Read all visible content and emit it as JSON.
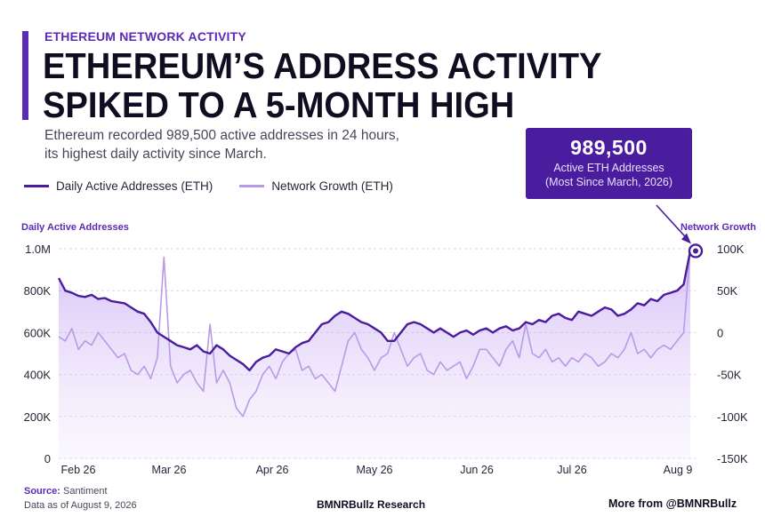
{
  "header": {
    "kicker": "ETHEREUM NETWORK ACTIVITY",
    "headline_line1": "ETHEREUM’S ADDRESS ACTIVITY",
    "headline_line2": "SPIKED TO A 5-MONTH HIGH",
    "subtitle_line1": "Ethereum recorded 989,500 active addresses in 24 hours,",
    "subtitle_line2": "its highest daily activity since March."
  },
  "callout": {
    "value": "989,500",
    "line1": "Active ETH Addresses",
    "line2": "(Most Since March, 2026)"
  },
  "footer": {
    "source_label": "Source:",
    "source_value": "Santiment",
    "data_as_of": "Data as of August 9, 2026",
    "center": "BMNRBullz Research",
    "right": "More from @BMNRBullz"
  },
  "colors": {
    "primary": "#4a1c9e",
    "secondary": "#b99ae6",
    "accent": "#5b2bb5"
  },
  "chart_data": {
    "type": "area",
    "left_axis_title": "Daily Active Addresses",
    "right_axis_title": "Network Growth",
    "left_ticks": [
      "1.0M",
      "800K",
      "600K",
      "400K",
      "200K",
      "0"
    ],
    "right_ticks": [
      "100K",
      "50K",
      "0",
      "-50K",
      "-100K",
      "-150K"
    ],
    "x_ticks": [
      "Feb 26",
      "Mar 26",
      "Apr 26",
      "May 26",
      "Jun 26",
      "Jul 26",
      "Aug 9"
    ],
    "ylim_left": [
      0,
      1000000
    ],
    "ylim_right": [
      -150000,
      100000
    ],
    "grid": true,
    "legend_position": "top-left",
    "series": [
      {
        "name": "Daily Active Addresses (ETH)",
        "axis": "left",
        "style": "line with light area fill",
        "color": "#4a1c9e",
        "values": [
          860000,
          800000,
          790000,
          775000,
          770000,
          780000,
          760000,
          765000,
          750000,
          745000,
          740000,
          720000,
          700000,
          690000,
          650000,
          600000,
          580000,
          560000,
          540000,
          530000,
          520000,
          540000,
          510000,
          500000,
          540000,
          520000,
          490000,
          470000,
          450000,
          420000,
          460000,
          480000,
          490000,
          520000,
          510000,
          500000,
          530000,
          550000,
          560000,
          600000,
          640000,
          650000,
          680000,
          700000,
          690000,
          670000,
          650000,
          640000,
          620000,
          600000,
          560000,
          560000,
          600000,
          640000,
          650000,
          640000,
          620000,
          600000,
          620000,
          600000,
          580000,
          600000,
          610000,
          590000,
          610000,
          620000,
          600000,
          620000,
          630000,
          610000,
          620000,
          650000,
          640000,
          660000,
          650000,
          680000,
          690000,
          670000,
          660000,
          700000,
          690000,
          680000,
          700000,
          720000,
          710000,
          680000,
          690000,
          710000,
          740000,
          730000,
          760000,
          750000,
          780000,
          790000,
          800000,
          830000,
          989500
        ]
      },
      {
        "name": "Network Growth (ETH)",
        "axis": "right",
        "style": "line",
        "color": "#b99ae6",
        "values": [
          -5000,
          -10000,
          5000,
          -20000,
          -10000,
          -15000,
          0,
          -10000,
          -20000,
          -30000,
          -25000,
          -45000,
          -50000,
          -40000,
          -55000,
          -30000,
          90000,
          -40000,
          -60000,
          -50000,
          -45000,
          -60000,
          -70000,
          10000,
          -60000,
          -45000,
          -60000,
          -90000,
          -100000,
          -80000,
          -70000,
          -50000,
          -40000,
          -55000,
          -35000,
          -25000,
          -20000,
          -45000,
          -40000,
          -55000,
          -50000,
          -60000,
          -70000,
          -40000,
          -10000,
          0,
          -20000,
          -30000,
          -45000,
          -30000,
          -25000,
          0,
          -20000,
          -40000,
          -30000,
          -25000,
          -45000,
          -50000,
          -35000,
          -45000,
          -40000,
          -35000,
          -55000,
          -40000,
          -20000,
          -20000,
          -30000,
          -40000,
          -20000,
          -10000,
          -30000,
          10000,
          -25000,
          -30000,
          -20000,
          -35000,
          -30000,
          -40000,
          -30000,
          -35000,
          -25000,
          -30000,
          -40000,
          -35000,
          -25000,
          -30000,
          -20000,
          0,
          -25000,
          -20000,
          -30000,
          -20000,
          -15000,
          -20000,
          -10000,
          0,
          100000
        ]
      }
    ],
    "annotation": {
      "text": "989,500",
      "point": "last value of Daily Active Addresses"
    }
  }
}
